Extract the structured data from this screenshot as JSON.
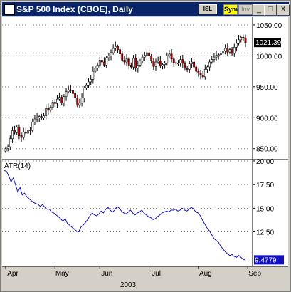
{
  "window": {
    "title": "S&P 500 Index (CBOE), Daily",
    "badges": {
      "isl": "ISL",
      "sym": "Sym",
      "inv": "Inv"
    },
    "buttons": {
      "minimize": "_",
      "maximize": "□",
      "close": "X"
    }
  },
  "colors": {
    "up": "#ffffff",
    "down": "#cc0000",
    "atr_line": "#1010c0",
    "last_bg": "#000000",
    "atr_bg": "#1010c0"
  },
  "chart_data": [
    {
      "type": "candlestick",
      "title": "",
      "ylim": [
        837,
        1058
      ],
      "y_ticks": [
        "1050.00",
        "1000.00",
        "950.00",
        "900.00",
        "850.00"
      ],
      "y_tick_values": [
        1050,
        1000,
        950,
        900,
        850
      ],
      "last_value": "1021.39",
      "grid": true,
      "x_labels": [
        "Apr",
        "May",
        "Jun",
        "Jul",
        "Aug",
        "Sep"
      ],
      "x_label_days": [
        0,
        22,
        42,
        64,
        86,
        108
      ],
      "year_label": "2003",
      "closes": [
        850,
        853,
        866,
        879,
        876,
        885,
        871,
        868,
        877,
        875,
        880,
        879,
        893,
        898,
        900,
        902,
        900,
        903,
        915,
        912,
        917,
        925,
        923,
        930,
        933,
        924,
        934,
        942,
        945,
        944,
        939,
        932,
        920,
        924,
        932,
        948,
        952,
        958,
        962,
        975,
        980,
        985,
        993,
        990,
        985,
        997,
        1000,
        1005,
        1012,
        1015,
        1010,
        1003,
        993,
        990,
        995,
        985,
        982,
        996,
        980,
        985,
        992,
        998,
        1001,
        1005,
        1000,
        992,
        983,
        990,
        992,
        984,
        986,
        988,
        1000,
        1003,
        995,
        989,
        988,
        988,
        994,
        988,
        980,
        978,
        987,
        990,
        982,
        975,
        972,
        969,
        966,
        978,
        982,
        990,
        994,
        998,
        1001,
        1002,
        1004,
        1008,
        1012,
        1006,
        1010,
        1004,
        1014,
        1020,
        1026,
        1030,
        1029,
        1021
      ]
    },
    {
      "type": "line",
      "title": "ATR(14)",
      "ylim": [
        9.0,
        20.0
      ],
      "y_ticks": [
        "20.00",
        "17.50",
        "15.00",
        "12.50"
      ],
      "y_tick_values": [
        20,
        17.5,
        15,
        12.5
      ],
      "last_value": "9.4779",
      "grid": true,
      "values": [
        19.0,
        18.9,
        18.4,
        17.8,
        18.2,
        17.5,
        16.7,
        17.2,
        16.4,
        16.6,
        16.2,
        16.0,
        15.8,
        15.6,
        15.5,
        15.4,
        15.2,
        15.4,
        15.1,
        14.9,
        14.9,
        14.6,
        14.5,
        14.3,
        14.1,
        13.9,
        13.6,
        13.9,
        13.4,
        13.2,
        13.0,
        12.8,
        12.6,
        12.5,
        13.0,
        13.2,
        13.5,
        13.8,
        14.2,
        14.5,
        14.3,
        14.2,
        14.4,
        14.7,
        14.5,
        14.9,
        15.1,
        14.8,
        14.6,
        14.8,
        15.2,
        15.0,
        14.7,
        14.5,
        14.4,
        14.6,
        14.8,
        14.5,
        14.3,
        14.5,
        14.6,
        14.8,
        14.5,
        14.3,
        14.1,
        14.0,
        13.8,
        13.9,
        14.1,
        14.3,
        14.5,
        14.6,
        14.7,
        14.6,
        14.8,
        14.8,
        14.9,
        14.7,
        14.8,
        15.0,
        14.8,
        14.7,
        14.9,
        15.1,
        14.9,
        14.6,
        14.5,
        14.2,
        13.7,
        13.3,
        12.9,
        12.6,
        12.2,
        11.8,
        11.6,
        11.4,
        11.0,
        10.7,
        10.4,
        10.2,
        10.0,
        10.1,
        9.9,
        9.8,
        10.0,
        9.8,
        9.6,
        9.5
      ]
    }
  ]
}
